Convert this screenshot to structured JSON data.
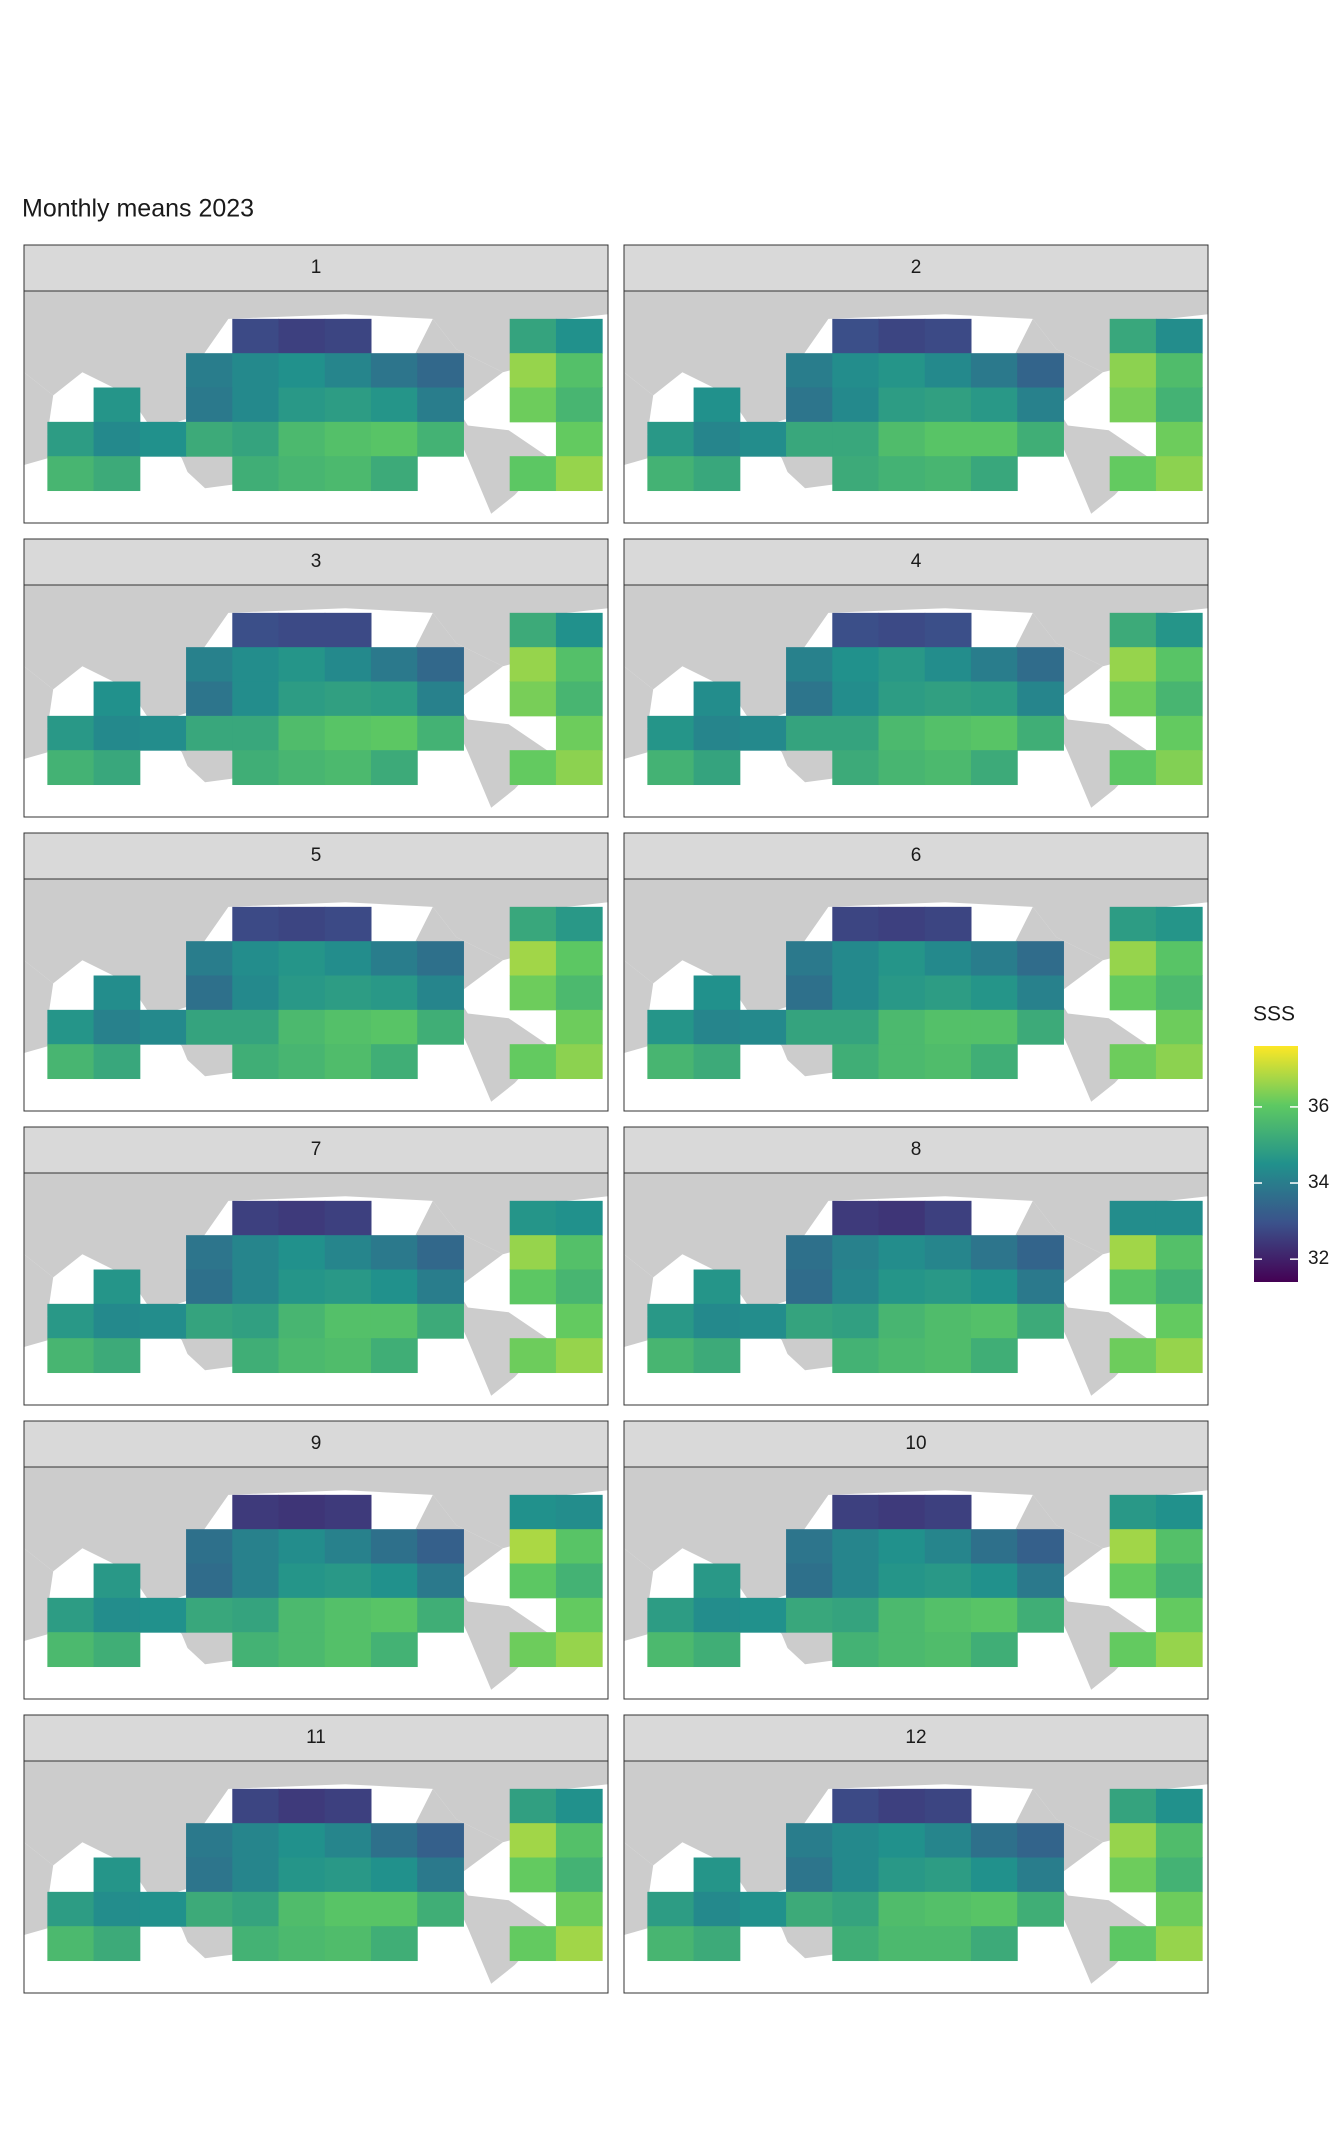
{
  "chart_data": {
    "type": "heatmap",
    "title": "Monthly means 2023",
    "legend_title": "SSS",
    "colorscale": [
      "#440154",
      "#3b528b",
      "#21918c",
      "#5ec962",
      "#fde725"
    ],
    "clim": [
      31.4,
      37.6
    ],
    "legend_ticks": [
      32,
      34,
      36
    ],
    "panels": [
      {
        "label": "1",
        "values": [
          [
            null,
            null,
            null,
            null,
            32.8,
            32.6,
            32.7,
            null,
            null,
            null,
            35.0,
            34.5
          ],
          [
            null,
            null,
            null,
            34.0,
            34.3,
            34.5,
            34.2,
            33.8,
            33.5,
            null,
            36.6,
            35.8
          ],
          [
            null,
            34.6,
            null,
            33.9,
            34.3,
            34.7,
            34.8,
            34.6,
            34.0,
            null,
            36.2,
            35.5
          ],
          [
            34.8,
            34.3,
            34.5,
            35.2,
            35.0,
            35.6,
            35.8,
            35.9,
            35.4,
            null,
            null,
            36.1
          ],
          [
            35.5,
            35.2,
            null,
            null,
            35.3,
            35.5,
            35.6,
            35.2,
            null,
            null,
            36.0,
            36.6
          ]
        ]
      },
      {
        "label": "2",
        "values": [
          [
            null,
            null,
            null,
            null,
            32.9,
            32.7,
            32.8,
            null,
            null,
            null,
            35.1,
            34.4
          ],
          [
            null,
            null,
            null,
            34.0,
            34.4,
            34.6,
            34.3,
            33.9,
            33.4,
            null,
            36.5,
            35.7
          ],
          [
            null,
            34.5,
            null,
            33.8,
            34.3,
            34.8,
            34.9,
            34.7,
            34.1,
            null,
            36.3,
            35.4
          ],
          [
            34.7,
            34.2,
            34.4,
            35.1,
            35.1,
            35.7,
            35.9,
            35.9,
            35.3,
            null,
            null,
            36.2
          ],
          [
            35.4,
            35.1,
            null,
            null,
            35.2,
            35.4,
            35.5,
            35.1,
            null,
            null,
            36.1,
            36.5
          ]
        ]
      },
      {
        "label": "3",
        "values": [
          [
            null,
            null,
            null,
            null,
            32.9,
            32.8,
            32.8,
            null,
            null,
            null,
            35.2,
            34.5
          ],
          [
            null,
            null,
            null,
            34.1,
            34.4,
            34.6,
            34.3,
            33.9,
            33.5,
            null,
            36.6,
            35.8
          ],
          [
            null,
            34.5,
            null,
            33.8,
            34.4,
            34.8,
            34.9,
            34.8,
            34.1,
            null,
            36.3,
            35.5
          ],
          [
            34.7,
            34.3,
            34.4,
            35.1,
            35.1,
            35.7,
            35.9,
            36.0,
            35.4,
            null,
            null,
            36.2
          ],
          [
            35.4,
            35.1,
            null,
            null,
            35.3,
            35.5,
            35.6,
            35.2,
            null,
            null,
            36.1,
            36.5
          ]
        ]
      },
      {
        "label": "4",
        "values": [
          [
            null,
            null,
            null,
            null,
            32.9,
            32.8,
            32.9,
            null,
            null,
            null,
            35.2,
            34.6
          ],
          [
            null,
            null,
            null,
            34.1,
            34.5,
            34.7,
            34.4,
            34.0,
            33.6,
            null,
            36.6,
            35.9
          ],
          [
            null,
            34.4,
            null,
            33.8,
            34.4,
            34.8,
            34.9,
            34.8,
            34.2,
            null,
            36.2,
            35.5
          ],
          [
            34.6,
            34.2,
            34.3,
            35.0,
            35.0,
            35.6,
            35.8,
            35.9,
            35.3,
            null,
            null,
            36.1
          ],
          [
            35.4,
            35.0,
            null,
            null,
            35.2,
            35.5,
            35.6,
            35.2,
            null,
            null,
            36.0,
            36.4
          ]
        ]
      },
      {
        "label": "5",
        "values": [
          [
            null,
            null,
            null,
            null,
            32.8,
            32.7,
            32.8,
            null,
            null,
            null,
            35.1,
            34.7
          ],
          [
            null,
            null,
            null,
            34.0,
            34.4,
            34.6,
            34.4,
            34.0,
            33.7,
            null,
            36.7,
            36.0
          ],
          [
            null,
            34.4,
            null,
            33.7,
            34.3,
            34.7,
            34.8,
            34.7,
            34.2,
            null,
            36.2,
            35.6
          ],
          [
            34.6,
            34.1,
            34.3,
            35.0,
            35.0,
            35.6,
            35.8,
            35.9,
            35.3,
            null,
            null,
            36.2
          ],
          [
            35.5,
            35.1,
            null,
            null,
            35.3,
            35.5,
            35.7,
            35.3,
            null,
            null,
            36.1,
            36.5
          ]
        ]
      },
      {
        "label": "6",
        "values": [
          [
            null,
            null,
            null,
            null,
            32.7,
            32.6,
            32.7,
            null,
            null,
            null,
            34.8,
            34.6
          ],
          [
            null,
            null,
            null,
            33.9,
            34.3,
            34.6,
            34.3,
            34.0,
            33.6,
            null,
            36.6,
            35.9
          ],
          [
            null,
            34.5,
            null,
            33.7,
            34.3,
            34.7,
            34.8,
            34.6,
            34.1,
            null,
            36.1,
            35.6
          ],
          [
            34.6,
            34.2,
            34.3,
            35.0,
            35.0,
            35.6,
            35.8,
            35.8,
            35.2,
            null,
            null,
            36.2
          ],
          [
            35.5,
            35.2,
            null,
            null,
            35.3,
            35.6,
            35.7,
            35.3,
            null,
            null,
            36.2,
            36.5
          ]
        ]
      },
      {
        "label": "7",
        "values": [
          [
            null,
            null,
            null,
            null,
            32.6,
            32.5,
            32.6,
            null,
            null,
            null,
            34.6,
            34.5
          ],
          [
            null,
            null,
            null,
            33.8,
            34.2,
            34.5,
            34.2,
            33.9,
            33.5,
            null,
            36.6,
            35.8
          ],
          [
            null,
            34.6,
            null,
            33.7,
            34.2,
            34.6,
            34.7,
            34.5,
            34.0,
            null,
            36.0,
            35.5
          ],
          [
            34.7,
            34.3,
            34.4,
            35.0,
            34.9,
            35.5,
            35.8,
            35.8,
            35.2,
            null,
            null,
            36.1
          ],
          [
            35.5,
            35.2,
            null,
            null,
            35.3,
            35.6,
            35.7,
            35.3,
            null,
            null,
            36.2,
            36.6
          ]
        ]
      },
      {
        "label": "8",
        "values": [
          [
            null,
            null,
            null,
            null,
            32.5,
            32.4,
            32.6,
            null,
            null,
            null,
            34.4,
            34.4
          ],
          [
            null,
            null,
            null,
            33.7,
            34.1,
            34.4,
            34.2,
            33.8,
            33.4,
            null,
            36.7,
            35.8
          ],
          [
            null,
            34.6,
            null,
            33.6,
            34.2,
            34.6,
            34.7,
            34.5,
            33.9,
            null,
            35.9,
            35.4
          ],
          [
            34.7,
            34.3,
            34.4,
            35.0,
            34.9,
            35.5,
            35.7,
            35.8,
            35.2,
            null,
            null,
            36.1
          ],
          [
            35.5,
            35.2,
            null,
            null,
            35.4,
            35.6,
            35.7,
            35.3,
            null,
            null,
            36.2,
            36.6
          ]
        ]
      },
      {
        "label": "9",
        "values": [
          [
            null,
            null,
            null,
            null,
            32.5,
            32.4,
            32.5,
            null,
            null,
            null,
            34.5,
            34.4
          ],
          [
            null,
            null,
            null,
            33.7,
            34.1,
            34.4,
            34.1,
            33.7,
            33.3,
            null,
            36.8,
            35.9
          ],
          [
            null,
            34.7,
            null,
            33.6,
            34.1,
            34.6,
            34.7,
            34.5,
            33.9,
            null,
            36.0,
            35.4
          ],
          [
            34.8,
            34.4,
            34.5,
            35.1,
            35.0,
            35.6,
            35.8,
            35.9,
            35.3,
            null,
            null,
            36.1
          ],
          [
            35.6,
            35.3,
            null,
            null,
            35.4,
            35.6,
            35.8,
            35.4,
            null,
            null,
            36.2,
            36.6
          ]
        ]
      },
      {
        "label": "10",
        "values": [
          [
            null,
            null,
            null,
            null,
            32.6,
            32.5,
            32.6,
            null,
            null,
            null,
            34.7,
            34.5
          ],
          [
            null,
            null,
            null,
            33.8,
            34.2,
            34.5,
            34.2,
            33.7,
            33.3,
            null,
            36.7,
            35.8
          ],
          [
            null,
            34.7,
            null,
            33.7,
            34.2,
            34.6,
            34.7,
            34.5,
            33.9,
            null,
            36.1,
            35.4
          ],
          [
            34.8,
            34.4,
            34.5,
            35.1,
            35.0,
            35.6,
            35.8,
            35.9,
            35.3,
            null,
            null,
            36.1
          ],
          [
            35.6,
            35.3,
            null,
            null,
            35.4,
            35.6,
            35.7,
            35.3,
            null,
            null,
            36.1,
            36.6
          ]
        ]
      },
      {
        "label": "11",
        "values": [
          [
            null,
            null,
            null,
            null,
            32.7,
            32.5,
            32.6,
            null,
            null,
            null,
            34.9,
            34.5
          ],
          [
            null,
            null,
            null,
            33.9,
            34.2,
            34.5,
            34.2,
            33.7,
            33.3,
            null,
            36.7,
            35.8
          ],
          [
            null,
            34.6,
            null,
            33.8,
            34.2,
            34.6,
            34.7,
            34.5,
            33.9,
            null,
            36.1,
            35.4
          ],
          [
            34.8,
            34.4,
            34.5,
            35.2,
            35.0,
            35.7,
            35.9,
            35.9,
            35.3,
            null,
            null,
            36.2
          ],
          [
            35.6,
            35.2,
            null,
            null,
            35.4,
            35.6,
            35.7,
            35.3,
            null,
            null,
            36.1,
            36.7
          ]
        ]
      },
      {
        "label": "12",
        "values": [
          [
            null,
            null,
            null,
            null,
            32.8,
            32.6,
            32.7,
            null,
            null,
            null,
            35.0,
            34.5
          ],
          [
            null,
            null,
            null,
            34.0,
            34.3,
            34.5,
            34.2,
            33.7,
            33.4,
            null,
            36.6,
            35.7
          ],
          [
            null,
            34.6,
            null,
            33.8,
            34.3,
            34.7,
            34.8,
            34.5,
            34.0,
            null,
            36.2,
            35.4
          ],
          [
            34.8,
            34.3,
            34.5,
            35.2,
            35.0,
            35.7,
            35.8,
            35.9,
            35.3,
            null,
            null,
            36.2
          ],
          [
            35.5,
            35.2,
            null,
            null,
            35.3,
            35.6,
            35.6,
            35.2,
            null,
            null,
            36.0,
            36.6
          ]
        ]
      }
    ]
  }
}
